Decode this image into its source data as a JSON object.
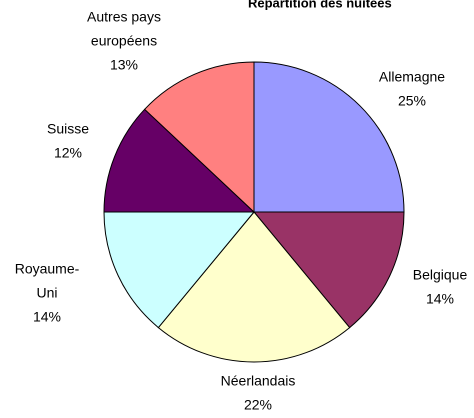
{
  "chart_data": {
    "type": "pie",
    "title": "Répartition des nuitées",
    "categories": [
      "Allemagne",
      "Belgique",
      "Néerlandais",
      "Royaume-Uni",
      "Suisse",
      "Autres pays européens"
    ],
    "labels": [
      [
        "Allemagne"
      ],
      [
        "Belgique"
      ],
      [
        "Néerlandais"
      ],
      [
        "Royaume-",
        "Uni"
      ],
      [
        "Suisse"
      ],
      [
        "Autres pays",
        "européens"
      ]
    ],
    "values": [
      25,
      14,
      22,
      14,
      12,
      13
    ],
    "value_labels": [
      "25%",
      "14%",
      "22%",
      "14%",
      "12%",
      "13%"
    ],
    "colors": [
      "#9999ff",
      "#993366",
      "#ffffcc",
      "#ccffff",
      "#660066",
      "#ff8080"
    ]
  }
}
